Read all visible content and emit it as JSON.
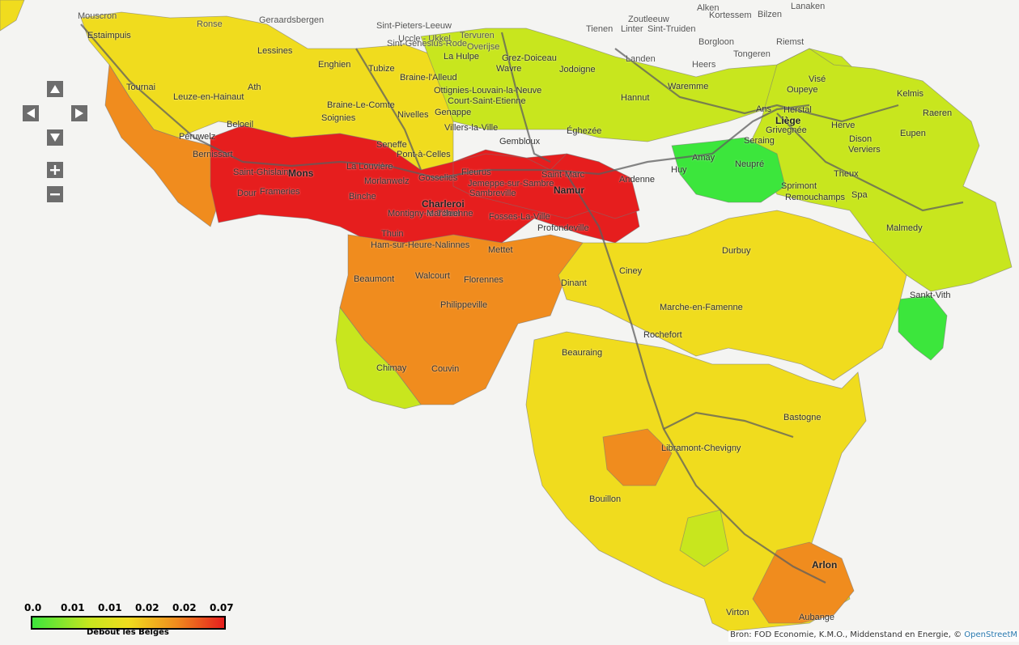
{
  "map": {
    "places": [
      {
        "name": "Mouscron",
        "cls": "out"
      },
      {
        "name": "Estaimpuis",
        "cls": ""
      },
      {
        "name": "Ronse",
        "cls": "out"
      },
      {
        "name": "Geraardsbergen",
        "cls": "out"
      },
      {
        "name": "Uccle - Ukkel",
        "cls": "out"
      },
      {
        "name": "Tervuren",
        "cls": "out"
      },
      {
        "name": "Sint-Pieters-Leeuw",
        "cls": "out"
      },
      {
        "name": "Sint-Genesius-Rode",
        "cls": "out"
      },
      {
        "name": "Overijse",
        "cls": "out"
      },
      {
        "name": "Tienen",
        "cls": "out"
      },
      {
        "name": "Zoutleeuw",
        "cls": "out"
      },
      {
        "name": "Linter",
        "cls": "out"
      },
      {
        "name": "Sint-Truiden",
        "cls": "out"
      },
      {
        "name": "Alken",
        "cls": "out"
      },
      {
        "name": "Kortessem",
        "cls": "out"
      },
      {
        "name": "Bilzen",
        "cls": "out"
      },
      {
        "name": "Lanaken",
        "cls": "out"
      },
      {
        "name": "Borgloon",
        "cls": "out"
      },
      {
        "name": "Riemst",
        "cls": "out"
      },
      {
        "name": "Tongeren",
        "cls": "out"
      },
      {
        "name": "Landen",
        "cls": "out"
      },
      {
        "name": "Heers",
        "cls": "out"
      },
      {
        "name": "Lessines",
        "cls": ""
      },
      {
        "name": "Enghien",
        "cls": ""
      },
      {
        "name": "Tubize",
        "cls": ""
      },
      {
        "name": "La Hulpe",
        "cls": ""
      },
      {
        "name": "Grez-Doiceau",
        "cls": ""
      },
      {
        "name": "Wavre",
        "cls": ""
      },
      {
        "name": "Jodoigne",
        "cls": ""
      },
      {
        "name": "Braine-l'Alleud",
        "cls": ""
      },
      {
        "name": "Ottignies-Louvain-la-Neuve",
        "cls": ""
      },
      {
        "name": "Court-Saint-Etienne",
        "cls": ""
      },
      {
        "name": "Genappe",
        "cls": ""
      },
      {
        "name": "Villers-la-Ville",
        "cls": ""
      },
      {
        "name": "Nivelles",
        "cls": ""
      },
      {
        "name": "Braine-Le-Comte",
        "cls": ""
      },
      {
        "name": "Soignies",
        "cls": ""
      },
      {
        "name": "Ath",
        "cls": ""
      },
      {
        "name": "Tournai",
        "cls": ""
      },
      {
        "name": "Leuze-en-Hainaut",
        "cls": ""
      },
      {
        "name": "Beloeil",
        "cls": ""
      },
      {
        "name": "Péruwelz",
        "cls": ""
      },
      {
        "name": "Bernissart",
        "cls": ""
      },
      {
        "name": "Saint-Ghislain",
        "cls": ""
      },
      {
        "name": "Mons",
        "cls": "big"
      },
      {
        "name": "Dour",
        "cls": ""
      },
      {
        "name": "Frameries",
        "cls": ""
      },
      {
        "name": "Seneffe",
        "cls": ""
      },
      {
        "name": "La Louvière",
        "cls": ""
      },
      {
        "name": "Morlanwelz",
        "cls": ""
      },
      {
        "name": "Binche",
        "cls": ""
      },
      {
        "name": "Pont-à-Celles",
        "cls": ""
      },
      {
        "name": "Gosselies",
        "cls": ""
      },
      {
        "name": "Fleurus",
        "cls": ""
      },
      {
        "name": "Jemeppe-sur-Sambre",
        "cls": ""
      },
      {
        "name": "Sambreville",
        "cls": ""
      },
      {
        "name": "Charleroi",
        "cls": "big"
      },
      {
        "name": "Montigny-le-Tilleul",
        "cls": ""
      },
      {
        "name": "Marchienne",
        "cls": ""
      },
      {
        "name": "Fosses-La-Ville",
        "cls": ""
      },
      {
        "name": "Thuin",
        "cls": ""
      },
      {
        "name": "Ham-sur-Heure-Nalinnes",
        "cls": ""
      },
      {
        "name": "Mettet",
        "cls": ""
      },
      {
        "name": "Beaumont",
        "cls": ""
      },
      {
        "name": "Walcourt",
        "cls": ""
      },
      {
        "name": "Florennes",
        "cls": ""
      },
      {
        "name": "Philippeville",
        "cls": ""
      },
      {
        "name": "Chimay",
        "cls": ""
      },
      {
        "name": "Couvin",
        "cls": ""
      },
      {
        "name": "Gembloux",
        "cls": ""
      },
      {
        "name": "Éghezée",
        "cls": ""
      },
      {
        "name": "Hannut",
        "cls": ""
      },
      {
        "name": "Saint-Marc",
        "cls": ""
      },
      {
        "name": "Namur",
        "cls": "big"
      },
      {
        "name": "Profondeville",
        "cls": ""
      },
      {
        "name": "Dinant",
        "cls": ""
      },
      {
        "name": "Andenne",
        "cls": ""
      },
      {
        "name": "Huy",
        "cls": ""
      },
      {
        "name": "Amay",
        "cls": ""
      },
      {
        "name": "Waremme",
        "cls": ""
      },
      {
        "name": "Ciney",
        "cls": ""
      },
      {
        "name": "Durbuy",
        "cls": ""
      },
      {
        "name": "Marche-en-Famenne",
        "cls": ""
      },
      {
        "name": "Rochefort",
        "cls": ""
      },
      {
        "name": "Beauraing",
        "cls": ""
      },
      {
        "name": "Oupeye",
        "cls": ""
      },
      {
        "name": "Visé",
        "cls": ""
      },
      {
        "name": "Ans",
        "cls": ""
      },
      {
        "name": "Herstal",
        "cls": ""
      },
      {
        "name": "Liège",
        "cls": "big"
      },
      {
        "name": "Grivegnée",
        "cls": ""
      },
      {
        "name": "Seraing",
        "cls": ""
      },
      {
        "name": "Neupré",
        "cls": ""
      },
      {
        "name": "Herve",
        "cls": ""
      },
      {
        "name": "Dison",
        "cls": ""
      },
      {
        "name": "Verviers",
        "cls": ""
      },
      {
        "name": "Kelmis",
        "cls": ""
      },
      {
        "name": "Raeren",
        "cls": ""
      },
      {
        "name": "Eupen",
        "cls": ""
      },
      {
        "name": "Theux",
        "cls": ""
      },
      {
        "name": "Spa",
        "cls": ""
      },
      {
        "name": "Sprimont",
        "cls": ""
      },
      {
        "name": "Remouchamps",
        "cls": ""
      },
      {
        "name": "Malmedy",
        "cls": ""
      },
      {
        "name": "Sankt-Vith",
        "cls": ""
      },
      {
        "name": "Bastogne",
        "cls": ""
      },
      {
        "name": "Libramont-Chevigny",
        "cls": ""
      },
      {
        "name": "Bouillon",
        "cls": ""
      },
      {
        "name": "Arlon",
        "cls": "big"
      },
      {
        "name": "Aubange",
        "cls": ""
      },
      {
        "name": "Virton",
        "cls": ""
      }
    ],
    "colors": {
      "high": "#e61e1e",
      "midhigh": "#f08c1e",
      "mid": "#f0dc1e",
      "midlow": "#c8e61e",
      "low": "#3ce63c",
      "border": "#777777",
      "road": "#666666"
    }
  },
  "legend": {
    "scale": [
      "0.0",
      "0.01",
      "0.01",
      "0.02",
      "0.02",
      "0.07"
    ],
    "title": "Debout les Belges"
  },
  "attribution": {
    "text": "Bron: FOD Economie, K.M.O., Middenstand en Energie, ©",
    "link": "OpenStreetM"
  },
  "controls": {
    "pan_up": "up-arrow-icon",
    "pan_left": "left-arrow-icon",
    "pan_right": "right-arrow-icon",
    "pan_down": "down-arrow-icon",
    "zoom_in": "plus-icon",
    "zoom_out": "minus-icon"
  }
}
